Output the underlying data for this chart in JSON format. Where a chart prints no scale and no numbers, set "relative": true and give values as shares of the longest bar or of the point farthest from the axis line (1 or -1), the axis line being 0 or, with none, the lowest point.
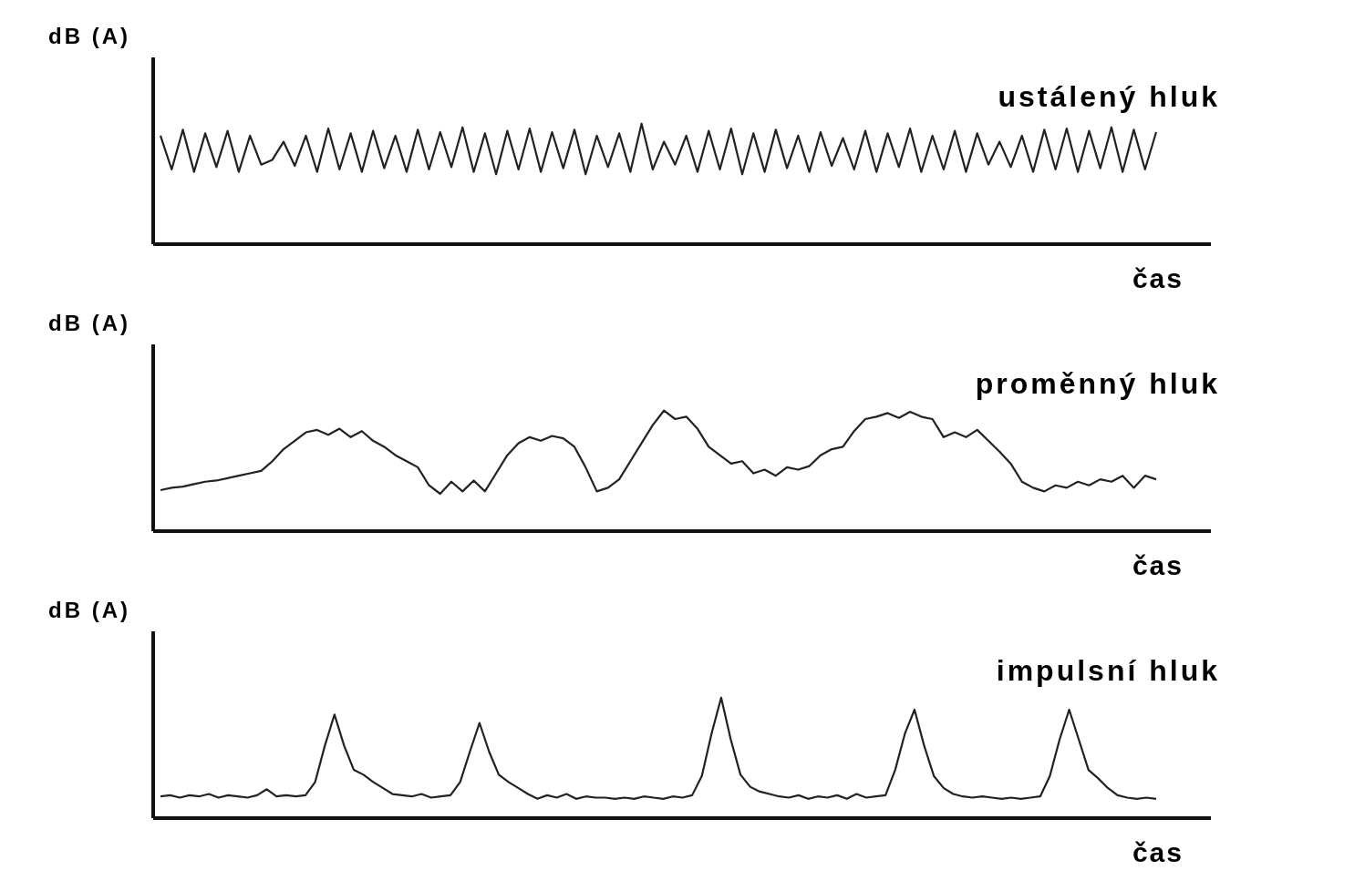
{
  "chart_data": [
    {
      "type": "line",
      "relative": true,
      "ylabel": "dB (A)",
      "xlabel": "čas",
      "annotations": [
        "ustálený hluk"
      ],
      "marker": "none",
      "categories": [
        null,
        null,
        null,
        null,
        null,
        null,
        null,
        null,
        null,
        null,
        null,
        null,
        null,
        null,
        null,
        null,
        null,
        null,
        null,
        null,
        null,
        null,
        null,
        null,
        null,
        null,
        null,
        null,
        null,
        null,
        null,
        null,
        null,
        null,
        null,
        null,
        null,
        null,
        null,
        null,
        null,
        null,
        null,
        null,
        null,
        null,
        null,
        null,
        null,
        null,
        null,
        null,
        null,
        null,
        null,
        null,
        null,
        null,
        null,
        null,
        null,
        null,
        null,
        null,
        null,
        null,
        null,
        null,
        null,
        null,
        null,
        null,
        null,
        null,
        null,
        null,
        null,
        null,
        null,
        null,
        null,
        null,
        null,
        null,
        null,
        null,
        null,
        null,
        null,
        null
      ],
      "series": [
        {
          "color": "#222222",
          "values": [
            0.9,
            0.62,
            0.95,
            0.6,
            0.92,
            0.64,
            0.94,
            0.6,
            0.9,
            0.66,
            0.7,
            0.85,
            0.65,
            0.9,
            0.6,
            0.96,
            0.62,
            0.92,
            0.6,
            0.94,
            0.63,
            0.9,
            0.6,
            0.95,
            0.62,
            0.93,
            0.64,
            0.97,
            0.6,
            0.92,
            0.58,
            0.94,
            0.62,
            0.96,
            0.6,
            0.93,
            0.63,
            0.95,
            0.58,
            0.9,
            0.64,
            0.92,
            0.6,
            1,
            0.62,
            0.85,
            0.66,
            0.9,
            0.6,
            0.94,
            0.62,
            0.96,
            0.58,
            0.92,
            0.6,
            0.95,
            0.63,
            0.9,
            0.6,
            0.93,
            0.65,
            0.88,
            0.62,
            0.94,
            0.6,
            0.92,
            0.64,
            0.96,
            0.6,
            0.9,
            0.62,
            0.94,
            0.6,
            0.92,
            0.66,
            0.85,
            0.64,
            0.9,
            0.6,
            0.95,
            0.62,
            0.96,
            0.6,
            0.94,
            0.63,
            0.97,
            0.6,
            0.95,
            0.62,
            0.93
          ]
        }
      ]
    },
    {
      "type": "line",
      "relative": true,
      "ylabel": "dB (A)",
      "xlabel": "čas",
      "annotations": [
        "proměnný hluk"
      ],
      "marker": "none",
      "categories": [
        null,
        null,
        null,
        null,
        null,
        null,
        null,
        null,
        null,
        null,
        null,
        null,
        null,
        null,
        null,
        null,
        null,
        null,
        null,
        null,
        null,
        null,
        null,
        null,
        null,
        null,
        null,
        null,
        null,
        null,
        null,
        null,
        null,
        null,
        null,
        null,
        null,
        null,
        null,
        null,
        null,
        null,
        null,
        null,
        null,
        null,
        null,
        null,
        null,
        null,
        null,
        null,
        null,
        null,
        null,
        null,
        null,
        null,
        null,
        null,
        null,
        null,
        null,
        null,
        null,
        null,
        null,
        null,
        null,
        null,
        null,
        null,
        null,
        null,
        null,
        null,
        null,
        null,
        null,
        null,
        null,
        null,
        null,
        null,
        null,
        null,
        null,
        null,
        null,
        null
      ],
      "series": [
        {
          "color": "#222222",
          "values": [
            0.34,
            0.36,
            0.37,
            0.39,
            0.41,
            0.42,
            0.44,
            0.46,
            0.48,
            0.5,
            0.58,
            0.68,
            0.75,
            0.82,
            0.84,
            0.8,
            0.85,
            0.78,
            0.83,
            0.75,
            0.7,
            0.63,
            0.58,
            0.53,
            0.38,
            0.31,
            0.41,
            0.33,
            0.42,
            0.33,
            0.48,
            0.63,
            0.73,
            0.78,
            0.75,
            0.79,
            0.77,
            0.7,
            0.53,
            0.33,
            0.36,
            0.43,
            0.58,
            0.73,
            0.88,
            1,
            0.93,
            0.95,
            0.85,
            0.7,
            0.63,
            0.56,
            0.58,
            0.48,
            0.51,
            0.46,
            0.53,
            0.51,
            0.54,
            0.63,
            0.68,
            0.7,
            0.83,
            0.93,
            0.95,
            0.98,
            0.94,
            0.99,
            0.95,
            0.93,
            0.78,
            0.82,
            0.78,
            0.84,
            0.75,
            0.66,
            0.56,
            0.41,
            0.36,
            0.33,
            0.38,
            0.36,
            0.41,
            0.38,
            0.43,
            0.41,
            0.46,
            0.36,
            0.46,
            0.43
          ]
        }
      ]
    },
    {
      "type": "line",
      "relative": true,
      "ylabel": "dB (A)",
      "xlabel": "čas",
      "annotations": [
        "impulsní hluk"
      ],
      "marker": "none",
      "categories": [
        null,
        null,
        null,
        null,
        null,
        null,
        null,
        null,
        null,
        null,
        null,
        null,
        null,
        null,
        null,
        null,
        null,
        null,
        null,
        null,
        null,
        null,
        null,
        null,
        null,
        null,
        null,
        null,
        null,
        null,
        null,
        null,
        null,
        null,
        null,
        null,
        null,
        null,
        null,
        null,
        null,
        null,
        null,
        null,
        null,
        null,
        null,
        null,
        null,
        null,
        null,
        null,
        null,
        null,
        null,
        null,
        null,
        null,
        null,
        null,
        null,
        null,
        null,
        null,
        null,
        null,
        null,
        null,
        null,
        null,
        null,
        null,
        null,
        null,
        null,
        null,
        null,
        null,
        null,
        null,
        null,
        null,
        null,
        null,
        null,
        null,
        null,
        null,
        null,
        null,
        null,
        null,
        null,
        null,
        null,
        null,
        null,
        null,
        null,
        null,
        null,
        null,
        null,
        null
      ],
      "series": [
        {
          "color": "#222222",
          "values": [
            0.18,
            0.19,
            0.17,
            0.19,
            0.18,
            0.2,
            0.17,
            0.19,
            0.18,
            0.17,
            0.19,
            0.24,
            0.18,
            0.19,
            0.18,
            0.19,
            0.3,
            0.6,
            0.86,
            0.6,
            0.4,
            0.36,
            0.3,
            0.25,
            0.2,
            0.19,
            0.18,
            0.2,
            0.17,
            0.18,
            0.19,
            0.3,
            0.55,
            0.79,
            0.55,
            0.36,
            0.3,
            0.25,
            0.2,
            0.16,
            0.19,
            0.17,
            0.2,
            0.16,
            0.18,
            0.17,
            0.17,
            0.16,
            0.17,
            0.16,
            0.18,
            0.17,
            0.16,
            0.18,
            0.17,
            0.19,
            0.35,
            0.7,
            1,
            0.65,
            0.36,
            0.26,
            0.22,
            0.2,
            0.18,
            0.17,
            0.19,
            0.16,
            0.18,
            0.17,
            0.19,
            0.16,
            0.2,
            0.17,
            0.18,
            0.19,
            0.4,
            0.7,
            0.9,
            0.6,
            0.35,
            0.25,
            0.2,
            0.18,
            0.17,
            0.18,
            0.17,
            0.16,
            0.17,
            0.16,
            0.17,
            0.18,
            0.35,
            0.65,
            0.9,
            0.65,
            0.4,
            0.33,
            0.25,
            0.19,
            0.17,
            0.16,
            0.17,
            0.16
          ]
        }
      ]
    }
  ]
}
